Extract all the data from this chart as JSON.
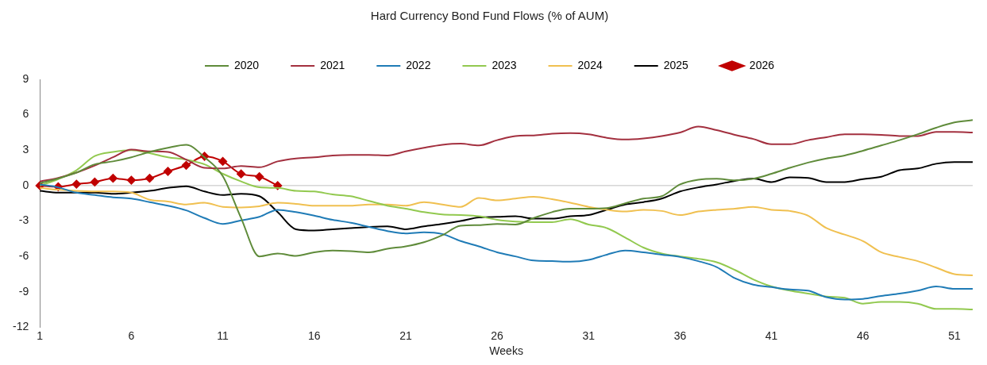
{
  "chart_data": {
    "type": "line",
    "title": "Hard Currency Bond Fund Flows (% of AUM)",
    "xlabel": "Weeks",
    "categories": [
      "1",
      null,
      null,
      null,
      null,
      "6",
      null,
      null,
      null,
      null,
      "11",
      null,
      null,
      null,
      null,
      "16",
      null,
      null,
      null,
      null,
      "21",
      null,
      null,
      null,
      null,
      "26",
      null,
      null,
      null,
      null,
      "31",
      null,
      null,
      null,
      null,
      "36",
      null,
      null,
      null,
      null,
      "41",
      null,
      null,
      null,
      null,
      "46",
      null,
      null,
      null,
      null,
      "51",
      null
    ],
    "ylim": [
      -12,
      9
    ],
    "yticks": [
      -12,
      -9,
      -6,
      -3,
      0,
      3,
      6,
      9
    ],
    "grid": false,
    "legend": "top",
    "marker": "none",
    "line_style": "solid",
    "ref_lines": [
      {
        "axis": "y",
        "value": 0,
        "color": "#bfbfbf"
      }
    ],
    "series": [
      {
        "name": "2020",
        "color": "#5f8b3a",
        "values": [
          0.2,
          0.6,
          1.1,
          1.8,
          2.05,
          2.4,
          2.85,
          3.2,
          3.45,
          2.4,
          0.8,
          -2.75,
          -6.0,
          -5.75,
          -5.95,
          -5.65,
          -5.5,
          -5.55,
          -5.65,
          -5.35,
          -5.15,
          -4.8,
          -4.2,
          -3.4,
          -3.35,
          -3.25,
          -3.3,
          -2.75,
          -2.25,
          -1.95,
          -1.95,
          -1.9,
          -1.5,
          -1.1,
          -0.9,
          0.1,
          0.5,
          0.58,
          0.45,
          0.58,
          1.0,
          1.5,
          1.95,
          2.3,
          2.55,
          2.95,
          3.4,
          3.85,
          4.35,
          4.9,
          5.35,
          5.55
        ]
      },
      {
        "name": "2021",
        "color": "#a3303f",
        "values": [
          0.35,
          0.65,
          1.1,
          1.7,
          2.4,
          3.05,
          2.9,
          2.85,
          2.2,
          1.5,
          1.45,
          1.65,
          1.55,
          2.05,
          2.3,
          2.4,
          2.55,
          2.6,
          2.6,
          2.55,
          2.9,
          3.2,
          3.45,
          3.55,
          3.4,
          3.85,
          4.2,
          4.25,
          4.4,
          4.45,
          4.35,
          4.05,
          3.9,
          4.0,
          4.2,
          4.5,
          5.0,
          4.7,
          4.3,
          3.95,
          3.5,
          3.5,
          3.85,
          4.1,
          4.35,
          4.35,
          4.3,
          4.2,
          4.2,
          4.55,
          4.55,
          4.5
        ]
      },
      {
        "name": "2022",
        "color": "#1f7bb6",
        "values": [
          0.1,
          -0.15,
          -0.6,
          -0.8,
          -1.0,
          -1.1,
          -1.4,
          -1.7,
          -2.1,
          -2.75,
          -3.25,
          -2.95,
          -2.65,
          -2.05,
          -2.25,
          -2.55,
          -2.9,
          -3.15,
          -3.5,
          -3.85,
          -4.05,
          -3.95,
          -4.1,
          -4.7,
          -5.15,
          -5.65,
          -6.0,
          -6.35,
          -6.4,
          -6.45,
          -6.3,
          -5.85,
          -5.5,
          -5.65,
          -5.85,
          -6.05,
          -6.4,
          -6.9,
          -7.85,
          -8.4,
          -8.6,
          -8.8,
          -8.9,
          -9.45,
          -9.65,
          -9.6,
          -9.35,
          -9.15,
          -8.9,
          -8.55,
          -8.75,
          -8.75
        ]
      },
      {
        "name": "2023",
        "color": "#92c94f",
        "values": [
          0.0,
          0.55,
          1.3,
          2.5,
          2.85,
          3.0,
          2.75,
          2.4,
          2.2,
          1.8,
          1.0,
          0.35,
          -0.15,
          -0.2,
          -0.45,
          -0.5,
          -0.75,
          -0.9,
          -1.3,
          -1.7,
          -1.95,
          -2.25,
          -2.45,
          -2.5,
          -2.6,
          -2.9,
          -3.05,
          -3.1,
          -3.1,
          -2.85,
          -3.3,
          -3.6,
          -4.4,
          -5.25,
          -5.75,
          -6.0,
          -6.2,
          -6.5,
          -7.15,
          -7.95,
          -8.55,
          -8.9,
          -9.15,
          -9.4,
          -9.5,
          -10.0,
          -9.85,
          -9.85,
          -10.0,
          -10.45,
          -10.45,
          -10.5
        ]
      },
      {
        "name": "2024",
        "color": "#f0c050",
        "values": [
          -0.2,
          -0.35,
          -0.45,
          -0.5,
          -0.5,
          -0.6,
          -1.2,
          -1.35,
          -1.6,
          -1.45,
          -1.8,
          -1.85,
          -1.75,
          -1.45,
          -1.55,
          -1.7,
          -1.7,
          -1.7,
          -1.6,
          -1.6,
          -1.7,
          -1.4,
          -1.6,
          -1.8,
          -1.05,
          -1.25,
          -1.1,
          -0.95,
          -1.15,
          -1.45,
          -1.8,
          -2.05,
          -2.2,
          -2.05,
          -2.15,
          -2.5,
          -2.2,
          -2.05,
          -1.95,
          -1.8,
          -2.05,
          -2.15,
          -2.55,
          -3.6,
          -4.15,
          -4.7,
          -5.65,
          -6.05,
          -6.4,
          -6.95,
          -7.5,
          -7.6
        ]
      },
      {
        "name": "2025",
        "color": "#000000",
        "values": [
          -0.45,
          -0.6,
          -0.6,
          -0.6,
          -0.7,
          -0.6,
          -0.45,
          -0.2,
          -0.05,
          -0.5,
          -0.8,
          -0.7,
          -0.9,
          -2.25,
          -3.7,
          -3.8,
          -3.7,
          -3.6,
          -3.5,
          -3.45,
          -3.7,
          -3.45,
          -3.25,
          -3.0,
          -2.7,
          -2.65,
          -2.6,
          -2.8,
          -2.8,
          -2.6,
          -2.5,
          -2.05,
          -1.6,
          -1.4,
          -1.1,
          -0.5,
          -0.15,
          0.1,
          0.4,
          0.6,
          0.3,
          0.7,
          0.65,
          0.3,
          0.3,
          0.55,
          0.75,
          1.3,
          1.45,
          1.85,
          2.0,
          2.0
        ]
      },
      {
        "name": "2026",
        "color": "#c00000",
        "marker": "diamond",
        "values": [
          0,
          -0.1,
          0.12,
          0.3,
          0.62,
          0.46,
          0.62,
          1.2,
          1.72,
          2.48,
          2.05,
          0.99,
          0.75,
          0,
          null,
          null,
          null,
          null,
          null,
          null,
          null,
          null,
          null,
          null,
          null,
          null,
          null,
          null,
          null,
          null,
          null,
          null,
          null,
          null,
          null,
          null,
          null,
          null,
          null,
          null,
          null,
          null,
          null,
          null,
          null,
          null,
          null,
          null,
          null,
          null,
          null,
          null
        ]
      }
    ]
  }
}
